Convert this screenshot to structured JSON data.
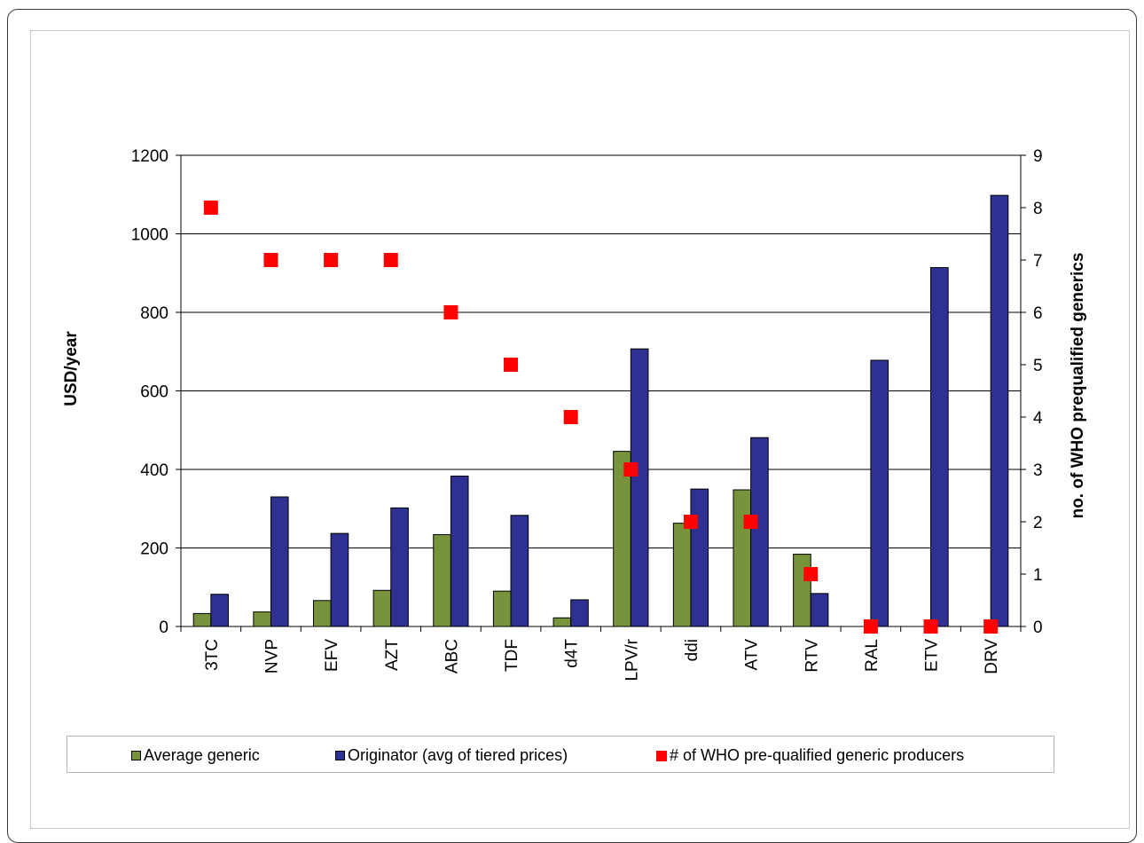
{
  "chart_data": {
    "type": "bar",
    "categories": [
      "3TC",
      "NVP",
      "EFV",
      "AZT",
      "ABC",
      "TDF",
      "d4T",
      "LPV/r",
      "ddi",
      "ATV",
      "RTV",
      "RAL",
      "ETV",
      "DRV"
    ],
    "series": [
      {
        "name": "Average generic",
        "axis": "left",
        "kind": "bar",
        "color": "#77933c",
        "values": [
          33,
          37,
          66,
          92,
          234,
          90,
          22,
          446,
          263,
          348,
          184,
          0,
          0,
          0
        ]
      },
      {
        "name": "Originator (avg of tiered prices)",
        "axis": "left",
        "kind": "bar",
        "color": "#2e3192",
        "values": [
          82,
          330,
          237,
          302,
          383,
          283,
          68,
          707,
          350,
          481,
          84,
          678,
          914,
          1098
        ]
      },
      {
        "name": "# of WHO pre-qualified generic producers",
        "axis": "right",
        "kind": "scatter",
        "color": "#ff0000",
        "values": [
          8,
          7,
          7,
          7,
          6,
          5,
          4,
          3,
          2,
          2,
          1,
          0,
          0,
          0
        ]
      }
    ],
    "ylabel": "USD/year",
    "y2label": "no. of WHO prequalified generics",
    "ylim": [
      0,
      1200
    ],
    "y2lim": [
      0,
      9
    ],
    "yticks": [
      "0",
      "200",
      "400",
      "600",
      "800",
      "1000",
      "1200"
    ],
    "y2ticks": [
      "0",
      "1",
      "2",
      "3",
      "4",
      "5",
      "6",
      "7",
      "8",
      "9"
    ],
    "grid": true,
    "legend_position": "bottom"
  },
  "legend": {
    "generic": "Average generic",
    "originator": "Originator (avg of tiered prices)",
    "producers": "# of WHO pre-qualified generic producers"
  }
}
